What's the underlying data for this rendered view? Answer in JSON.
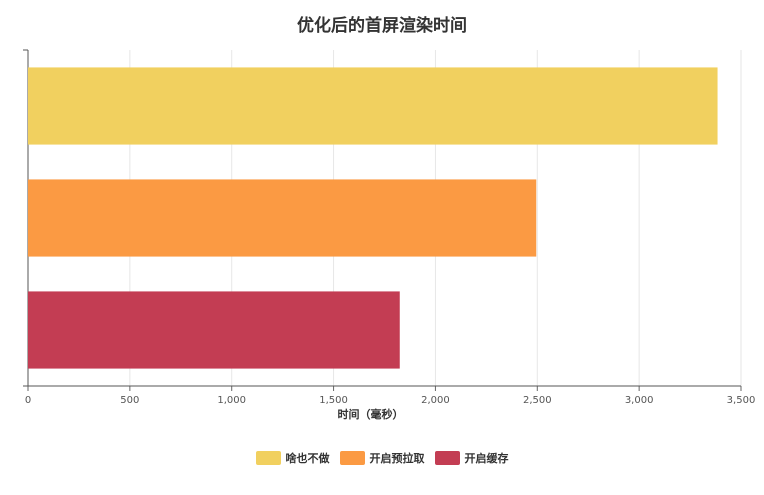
{
  "chart_data": {
    "type": "bar",
    "orientation": "horizontal",
    "title": "优化后的首屏渲染时间",
    "xlabel": "时间（毫秒）",
    "ylabel": "",
    "xlim": [
      0,
      3500
    ],
    "x_ticks": [
      0,
      500,
      1000,
      1500,
      2000,
      2500,
      3000,
      3500
    ],
    "x_tick_labels": [
      "0",
      "500",
      "1,000",
      "1,500",
      "2,000",
      "2,500",
      "3,000",
      "3,500"
    ],
    "grid": true,
    "legend_position": "bottom",
    "series": [
      {
        "name": "啥也不做",
        "value": 3380,
        "color": "#f1d05f"
      },
      {
        "name": "开启预拉取",
        "value": 2490,
        "color": "#fb9a43"
      },
      {
        "name": "开启缓存",
        "value": 1820,
        "color": "#c33d53"
      }
    ]
  }
}
